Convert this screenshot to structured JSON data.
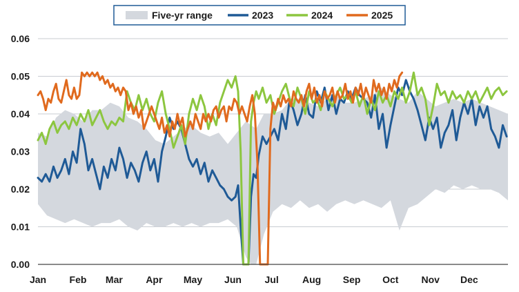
{
  "chart_data": {
    "type": "line",
    "title": "",
    "xlabel": "",
    "ylabel": "",
    "categories": [
      "Jan",
      "Feb",
      "Mar",
      "Apr",
      "May",
      "Jun",
      "Jul",
      "Aug",
      "Sep",
      "Oct",
      "Nov",
      "Dec"
    ],
    "ylim": [
      0,
      0.06
    ],
    "yticks": [
      "0.00",
      "0.01",
      "0.02",
      "0.03",
      "0.04",
      "0.05",
      "0.06"
    ],
    "grid": "horizontal",
    "legend_position": "top-center",
    "band": {
      "name": "Five-yr range",
      "color": "#d4d8de",
      "x": [
        1,
        8,
        15,
        22,
        29,
        36,
        43,
        50,
        57,
        64,
        71,
        78,
        85,
        92,
        99,
        106,
        113,
        120,
        127,
        134,
        141,
        148,
        155,
        162,
        166,
        170,
        176,
        183,
        190,
        197,
        204,
        211,
        218,
        225,
        232,
        239,
        246,
        253,
        260,
        267,
        274,
        281,
        288,
        295,
        302,
        309,
        316,
        323,
        330,
        337,
        344,
        351,
        358,
        365
      ],
      "low": [
        0.016,
        0.013,
        0.012,
        0.011,
        0.012,
        0.011,
        0.01,
        0.011,
        0.011,
        0.012,
        0.01,
        0.009,
        0.011,
        0.01,
        0.01,
        0.011,
        0.01,
        0.011,
        0.01,
        0.011,
        0.011,
        0.012,
        0.01,
        0.002,
        0.0,
        0.0,
        0.008,
        0.014,
        0.016,
        0.015,
        0.017,
        0.015,
        0.016,
        0.014,
        0.016,
        0.017,
        0.016,
        0.017,
        0.016,
        0.015,
        0.017,
        0.009,
        0.015,
        0.016,
        0.018,
        0.02,
        0.019,
        0.021,
        0.02,
        0.021,
        0.02,
        0.02,
        0.019,
        0.017
      ],
      "high": [
        0.035,
        0.034,
        0.039,
        0.041,
        0.04,
        0.038,
        0.041,
        0.041,
        0.043,
        0.042,
        0.039,
        0.038,
        0.036,
        0.033,
        0.032,
        0.034,
        0.036,
        0.037,
        0.035,
        0.034,
        0.035,
        0.032,
        0.035,
        0.038,
        0.037,
        0.036,
        0.04,
        0.04,
        0.041,
        0.044,
        0.044,
        0.043,
        0.042,
        0.044,
        0.045,
        0.043,
        0.043,
        0.044,
        0.045,
        0.047,
        0.045,
        0.044,
        0.043,
        0.046,
        0.044,
        0.042,
        0.043,
        0.044,
        0.043,
        0.044,
        0.043,
        0.042,
        0.041,
        0.04
      ]
    },
    "series": [
      {
        "name": "2023",
        "color": "#1f5a96",
        "x": [
          1,
          4,
          7,
          10,
          13,
          16,
          19,
          22,
          25,
          28,
          31,
          34,
          37,
          40,
          43,
          46,
          49,
          52,
          55,
          58,
          61,
          64,
          67,
          70,
          73,
          76,
          79,
          82,
          85,
          88,
          91,
          94,
          97,
          100,
          103,
          106,
          109,
          112,
          115,
          118,
          121,
          124,
          127,
          130,
          133,
          136,
          139,
          142,
          145,
          148,
          151,
          154,
          156,
          158,
          160,
          162,
          164,
          166,
          168,
          170,
          172,
          175,
          178,
          181,
          184,
          187,
          190,
          193,
          196,
          199,
          202,
          205,
          208,
          211,
          214,
          217,
          220,
          223,
          226,
          229,
          232,
          235,
          238,
          241,
          244,
          247,
          250,
          253,
          256,
          259,
          262,
          265,
          268,
          271,
          274,
          277,
          280,
          283,
          286,
          289,
          292,
          295,
          298,
          301,
          304,
          307,
          310,
          313,
          316,
          319,
          322,
          325,
          328,
          331,
          334,
          337,
          340,
          343,
          346,
          349,
          352,
          355,
          358,
          361,
          364
        ],
        "y": [
          0.023,
          0.022,
          0.024,
          0.022,
          0.026,
          0.023,
          0.025,
          0.028,
          0.024,
          0.03,
          0.027,
          0.036,
          0.032,
          0.025,
          0.028,
          0.024,
          0.02,
          0.026,
          0.023,
          0.028,
          0.025,
          0.031,
          0.028,
          0.023,
          0.027,
          0.025,
          0.022,
          0.027,
          0.03,
          0.025,
          0.028,
          0.022,
          0.03,
          0.034,
          0.039,
          0.036,
          0.038,
          0.036,
          0.032,
          0.028,
          0.026,
          0.028,
          0.024,
          0.027,
          0.022,
          0.025,
          0.023,
          0.021,
          0.02,
          0.018,
          0.017,
          0.018,
          0.021,
          0.01,
          0.0,
          0.0,
          0.0,
          0.018,
          0.024,
          0.023,
          0.029,
          0.034,
          0.032,
          0.034,
          0.036,
          0.033,
          0.04,
          0.036,
          0.044,
          0.041,
          0.037,
          0.04,
          0.045,
          0.04,
          0.039,
          0.046,
          0.043,
          0.047,
          0.041,
          0.045,
          0.04,
          0.044,
          0.043,
          0.046,
          0.044,
          0.047,
          0.045,
          0.044,
          0.043,
          0.039,
          0.045,
          0.036,
          0.04,
          0.031,
          0.037,
          0.042,
          0.047,
          0.045,
          0.049,
          0.046,
          0.044,
          0.041,
          0.037,
          0.033,
          0.039,
          0.036,
          0.039,
          0.031,
          0.035,
          0.037,
          0.041,
          0.033,
          0.039,
          0.043,
          0.04,
          0.044,
          0.037,
          0.042,
          0.039,
          0.042,
          0.036,
          0.034,
          0.031,
          0.037,
          0.034
        ]
      },
      {
        "name": "2024",
        "color": "#8cc63f",
        "x": [
          1,
          4,
          7,
          10,
          13,
          16,
          19,
          22,
          25,
          28,
          31,
          34,
          37,
          40,
          43,
          46,
          49,
          52,
          55,
          58,
          61,
          64,
          67,
          70,
          73,
          76,
          79,
          82,
          85,
          88,
          91,
          94,
          97,
          100,
          103,
          106,
          109,
          112,
          115,
          118,
          121,
          124,
          127,
          130,
          133,
          136,
          139,
          142,
          145,
          148,
          151,
          154,
          156,
          158,
          160,
          162,
          164,
          166,
          168,
          170,
          172,
          175,
          178,
          181,
          184,
          187,
          190,
          193,
          196,
          199,
          202,
          205,
          208,
          211,
          214,
          217,
          220,
          223,
          226,
          229,
          232,
          235,
          238,
          241,
          244,
          247,
          250,
          253,
          256,
          259,
          262,
          265,
          268,
          271,
          274,
          277,
          280,
          283,
          286,
          289,
          292,
          295,
          298,
          301,
          304,
          307,
          310,
          313,
          316,
          319,
          322,
          325,
          328,
          331,
          334,
          337,
          340,
          343,
          346,
          349,
          352,
          355,
          358,
          361,
          364
        ],
        "y": [
          0.033,
          0.035,
          0.032,
          0.036,
          0.038,
          0.035,
          0.037,
          0.038,
          0.036,
          0.039,
          0.037,
          0.04,
          0.038,
          0.041,
          0.037,
          0.039,
          0.041,
          0.038,
          0.036,
          0.038,
          0.037,
          0.039,
          0.038,
          0.046,
          0.043,
          0.041,
          0.045,
          0.041,
          0.044,
          0.04,
          0.038,
          0.043,
          0.046,
          0.04,
          0.036,
          0.031,
          0.034,
          0.037,
          0.032,
          0.04,
          0.044,
          0.041,
          0.045,
          0.042,
          0.036,
          0.04,
          0.037,
          0.043,
          0.046,
          0.049,
          0.047,
          0.05,
          0.046,
          0.03,
          0.0,
          0.0,
          0.0,
          0.038,
          0.043,
          0.046,
          0.044,
          0.047,
          0.043,
          0.045,
          0.04,
          0.043,
          0.046,
          0.048,
          0.044,
          0.042,
          0.047,
          0.044,
          0.04,
          0.046,
          0.043,
          0.044,
          0.041,
          0.046,
          0.044,
          0.042,
          0.045,
          0.047,
          0.044,
          0.045,
          0.043,
          0.046,
          0.042,
          0.045,
          0.04,
          0.044,
          0.041,
          0.046,
          0.043,
          0.045,
          0.042,
          0.046,
          0.044,
          0.047,
          0.043,
          0.046,
          0.051,
          0.045,
          0.047,
          0.044,
          0.037,
          0.042,
          0.048,
          0.045,
          0.046,
          0.043,
          0.046,
          0.044,
          0.045,
          0.043,
          0.046,
          0.044,
          0.046,
          0.043,
          0.045,
          0.047,
          0.044,
          0.046,
          0.047,
          0.045,
          0.046
        ]
      },
      {
        "name": "2025",
        "color": "#e06a1e",
        "x": [
          1,
          3,
          5,
          7,
          9,
          11,
          13,
          15,
          17,
          19,
          21,
          23,
          25,
          27,
          29,
          31,
          33,
          35,
          37,
          39,
          41,
          43,
          45,
          47,
          49,
          51,
          53,
          55,
          57,
          59,
          61,
          63,
          65,
          67,
          69,
          71,
          73,
          75,
          77,
          79,
          81,
          83,
          85,
          87,
          89,
          91,
          93,
          95,
          97,
          99,
          101,
          103,
          105,
          107,
          109,
          111,
          113,
          115,
          117,
          119,
          121,
          123,
          125,
          127,
          129,
          131,
          133,
          135,
          137,
          139,
          141,
          143,
          145,
          147,
          149,
          151,
          153,
          155,
          157,
          159,
          161,
          163,
          165,
          167,
          169,
          171,
          173,
          175,
          177,
          179,
          181,
          183,
          185,
          187,
          189,
          191,
          193,
          195,
          197,
          199,
          201,
          203,
          205,
          207,
          209,
          211,
          213,
          215,
          217,
          219,
          221,
          223,
          225,
          227,
          229,
          231,
          233,
          235,
          237,
          239,
          241,
          243,
          245,
          247,
          249,
          251,
          253,
          255,
          257,
          259,
          261,
          263,
          265,
          267,
          269,
          271,
          273,
          275,
          277,
          279,
          281,
          283
        ],
        "y": [
          0.045,
          0.046,
          0.044,
          0.041,
          0.044,
          0.043,
          0.046,
          0.048,
          0.044,
          0.043,
          0.046,
          0.049,
          0.045,
          0.044,
          0.047,
          0.044,
          0.045,
          0.051,
          0.05,
          0.051,
          0.05,
          0.051,
          0.05,
          0.051,
          0.049,
          0.05,
          0.048,
          0.049,
          0.047,
          0.048,
          0.046,
          0.047,
          0.045,
          0.047,
          0.046,
          0.041,
          0.043,
          0.04,
          0.042,
          0.039,
          0.041,
          0.036,
          0.038,
          0.04,
          0.042,
          0.04,
          0.038,
          0.036,
          0.039,
          0.035,
          0.037,
          0.034,
          0.038,
          0.036,
          0.04,
          0.037,
          0.039,
          0.034,
          0.036,
          0.038,
          0.036,
          0.04,
          0.038,
          0.036,
          0.04,
          0.038,
          0.04,
          0.038,
          0.041,
          0.042,
          0.039,
          0.041,
          0.042,
          0.038,
          0.042,
          0.041,
          0.044,
          0.043,
          0.04,
          0.042,
          0.04,
          0.038,
          0.042,
          0.045,
          0.04,
          0.027,
          0.0,
          0.0,
          0.0,
          0.0,
          0.036,
          0.043,
          0.041,
          0.044,
          0.042,
          0.045,
          0.043,
          0.044,
          0.042,
          0.046,
          0.044,
          0.043,
          0.045,
          0.042,
          0.046,
          0.048,
          0.044,
          0.047,
          0.043,
          0.045,
          0.042,
          0.046,
          0.044,
          0.045,
          0.047,
          0.043,
          0.046,
          0.044,
          0.045,
          0.048,
          0.044,
          0.046,
          0.043,
          0.047,
          0.045,
          0.048,
          0.044,
          0.047,
          0.045,
          0.043,
          0.049,
          0.046,
          0.048,
          0.045,
          0.047,
          0.044,
          0.048,
          0.046,
          0.049,
          0.047,
          0.05,
          0.051
        ]
      }
    ]
  }
}
